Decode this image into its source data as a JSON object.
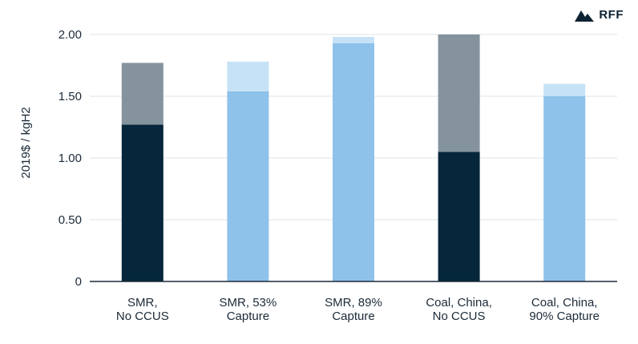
{
  "logo": {
    "text": "RFF"
  },
  "colors": {
    "gridline": "#dde3e9",
    "axis": "#1b2a38",
    "navy": "#05263b",
    "gray": "#84939d",
    "blue": "#8ec2ea",
    "lightblue": "#c6e2f6"
  },
  "chart_data": {
    "type": "bar",
    "stacked": true,
    "title": "",
    "xlabel": "",
    "ylabel": "2019$ / kgH2",
    "ylim": [
      0,
      2.0
    ],
    "yticks": [
      0,
      0.5,
      1.0,
      1.5,
      2.0
    ],
    "ytick_labels": [
      "0",
      "0.50",
      "1.00",
      "1.50",
      "2.00"
    ],
    "grid": true,
    "categories": [
      [
        "SMR,",
        "No CCUS"
      ],
      [
        "SMR, 53%",
        "Capture"
      ],
      [
        "SMR, 89%",
        "Capture"
      ],
      [
        "Coal, China,",
        "No CCUS"
      ],
      [
        "Coal, China,",
        "90% Capture"
      ]
    ],
    "bars": [
      {
        "segments": [
          {
            "value": 1.27,
            "color": "#05263b"
          },
          {
            "value": 0.5,
            "color": "#84939d"
          }
        ]
      },
      {
        "segments": [
          {
            "value": 1.54,
            "color": "#8ec2ea"
          },
          {
            "value": 0.24,
            "color": "#c6e2f6"
          }
        ]
      },
      {
        "segments": [
          {
            "value": 1.93,
            "color": "#8ec2ea"
          },
          {
            "value": 0.05,
            "color": "#c6e2f6"
          }
        ]
      },
      {
        "segments": [
          {
            "value": 1.05,
            "color": "#05263b"
          },
          {
            "value": 0.95,
            "color": "#84939d"
          }
        ]
      },
      {
        "segments": [
          {
            "value": 1.5,
            "color": "#8ec2ea"
          },
          {
            "value": 0.1,
            "color": "#c6e2f6"
          }
        ]
      }
    ]
  }
}
